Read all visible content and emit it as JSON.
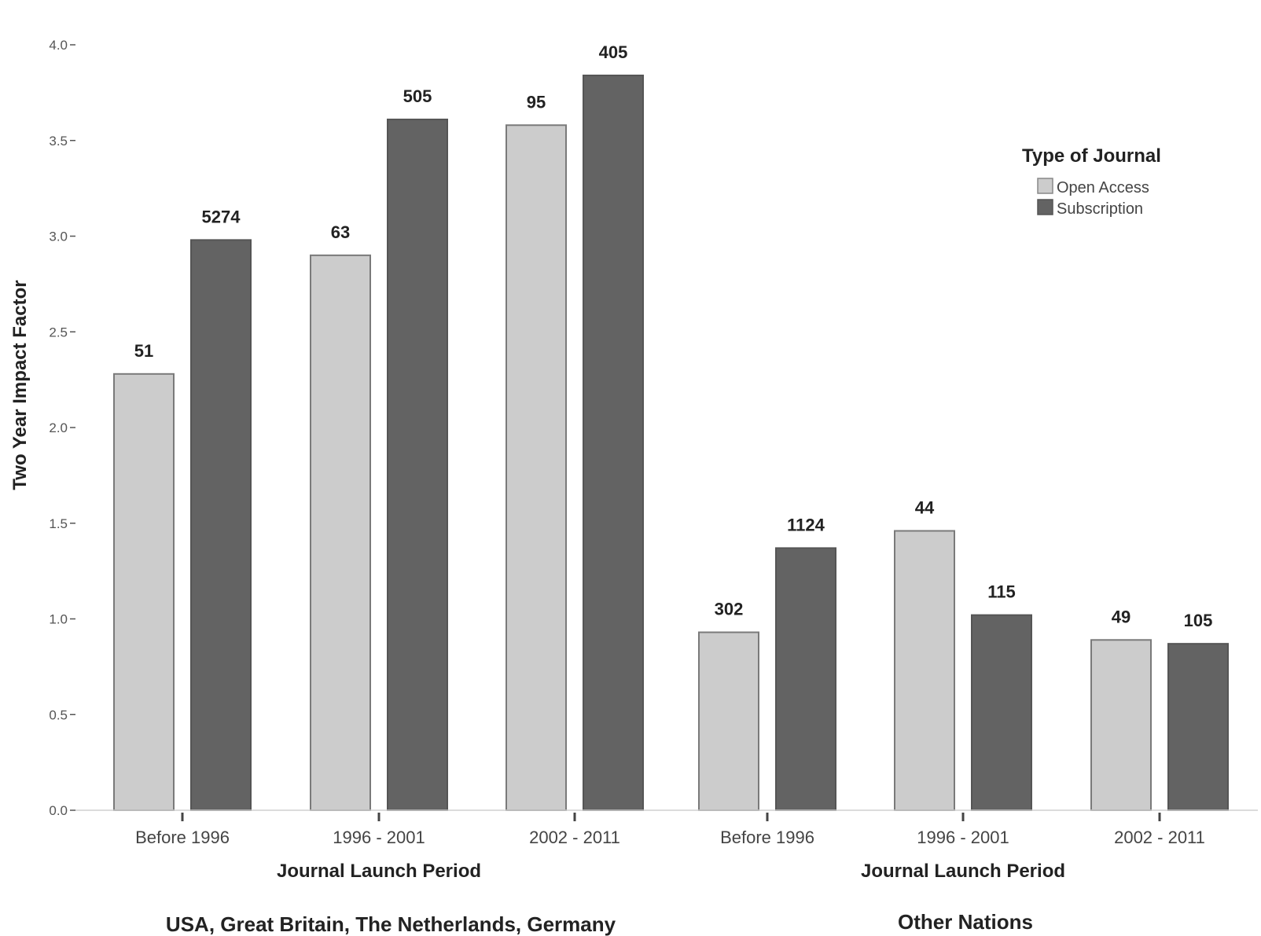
{
  "chart_data": {
    "type": "bar",
    "ylabel": "Two Year Impact Factor",
    "ylim": [
      0,
      4.0
    ],
    "yticks": [
      "0.0",
      "0.5",
      "1.0",
      "1.5",
      "2.0",
      "2.5",
      "3.0",
      "3.5",
      "4.0"
    ],
    "ytick_values": [
      0,
      0.5,
      1.0,
      1.5,
      2.0,
      2.5,
      3.0,
      3.5,
      4.0
    ],
    "grid": false,
    "legend": {
      "title": "Type of Journal",
      "position": "top-right",
      "entries": [
        "Open Access",
        "Subscription"
      ]
    },
    "colors": {
      "Open Access": "#cccccc",
      "Subscription": "#636363"
    },
    "panels": [
      {
        "title": "USA, Great Britain, The Netherlands, Germany",
        "xlabel": "Journal Launch Period",
        "categories": [
          "Before 1996",
          "1996 - 2001",
          "2002 - 2011"
        ],
        "series": [
          {
            "name": "Open Access",
            "values": [
              2.28,
              2.9,
              3.58
            ],
            "labels": [
              "51",
              "63",
              "95"
            ]
          },
          {
            "name": "Subscription",
            "values": [
              2.98,
              3.61,
              3.84
            ],
            "labels": [
              "5274",
              "505",
              "405"
            ]
          }
        ]
      },
      {
        "title": "Other Nations",
        "xlabel": "Journal Launch Period",
        "categories": [
          "Before 1996",
          "1996 - 2001",
          "2002 - 2011"
        ],
        "series": [
          {
            "name": "Open Access",
            "values": [
              0.93,
              1.46,
              0.89
            ],
            "labels": [
              "302",
              "44",
              "49"
            ]
          },
          {
            "name": "Subscription",
            "values": [
              1.37,
              1.02,
              0.87
            ],
            "labels": [
              "1124",
              "115",
              "105"
            ]
          }
        ]
      }
    ]
  }
}
